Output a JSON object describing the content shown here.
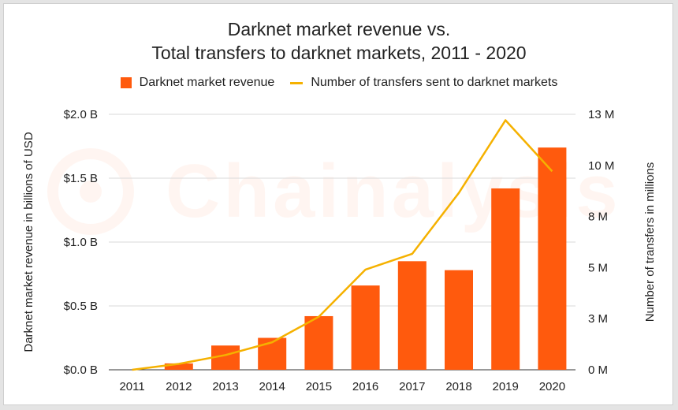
{
  "chart_data": {
    "type": "bar",
    "title_line1": "Darknet market revenue vs.",
    "title_line2": "Total transfers to darknet markets, 2011 - 2020",
    "categories": [
      "2011",
      "2012",
      "2013",
      "2014",
      "2015",
      "2016",
      "2017",
      "2018",
      "2019",
      "2020"
    ],
    "series": [
      {
        "name": "Darknet market revenue",
        "type": "bar",
        "axis": "left",
        "color": "#ff5a0d",
        "values": [
          0.0,
          0.05,
          0.19,
          0.25,
          0.42,
          0.66,
          0.85,
          0.78,
          1.42,
          1.74
        ]
      },
      {
        "name": "Number of transfers sent to darknet markets",
        "type": "line",
        "axis": "right",
        "color": "#f5b100",
        "values": [
          0.0,
          0.3,
          0.75,
          1.4,
          2.7,
          5.1,
          5.9,
          9.0,
          12.7,
          10.1
        ]
      }
    ],
    "ylabel_left": "Darknet market revenue in billions of USD",
    "ylabel_right": "Number of transfers in millions",
    "ylim_left": [
      0,
      2.0
    ],
    "ylim_right": [
      0,
      13
    ],
    "left_ticks": [
      {
        "value": 0.0,
        "label": "$0.0 B"
      },
      {
        "value": 0.5,
        "label": "$0.5 B"
      },
      {
        "value": 1.0,
        "label": "$1.0 B"
      },
      {
        "value": 1.5,
        "label": "$1.5 B"
      },
      {
        "value": 2.0,
        "label": "$2.0 B"
      }
    ],
    "right_ticks": [
      {
        "value": 0,
        "label": "0 M"
      },
      {
        "value": 2.6,
        "label": "3 M"
      },
      {
        "value": 5.2,
        "label": "5 M"
      },
      {
        "value": 7.8,
        "label": "8 M"
      },
      {
        "value": 10.4,
        "label": "10 M"
      },
      {
        "value": 13,
        "label": "13 M"
      }
    ],
    "grid": true,
    "legend_position": "top-center",
    "watermark": "Chainalysis"
  }
}
